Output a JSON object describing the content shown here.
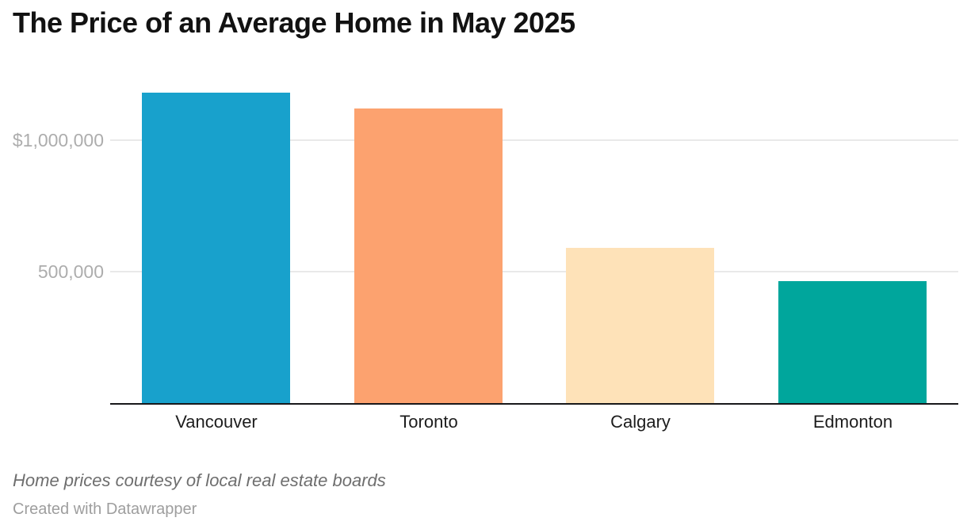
{
  "header": {
    "title": "The Price of an Average Home in May 2025"
  },
  "footer": {
    "source_note": "Home prices courtesy of local real estate boards",
    "credit": "Created with Datawrapper"
  },
  "colors": {
    "title": "#121212",
    "grid": "#e9e9e9",
    "axis_line": "#18181a",
    "tick_label": "#adadad",
    "category_label": "#1d1d1d",
    "source_note": "#6e6e6e",
    "credit": "#9e9e9e",
    "background": "#ffffff"
  },
  "chart_data": {
    "type": "bar",
    "title": "The Price of an Average Home in May 2025",
    "categories": [
      "Vancouver",
      "Toronto",
      "Calgary",
      "Edmonton"
    ],
    "values": [
      1181000,
      1120000,
      590000,
      464000
    ],
    "bar_colors": [
      "#18a1cc",
      "#fca26f",
      "#fee2b8",
      "#00a69c"
    ],
    "xlabel": "",
    "ylabel": "",
    "ylim": [
      0,
      1277000
    ],
    "yticks": [
      {
        "value": 500000,
        "label": "500,000"
      },
      {
        "value": 1000000,
        "label": "$1,000,000"
      }
    ],
    "grid": "horizontal",
    "legend": "none",
    "currency": "CAD",
    "unit": "$"
  }
}
